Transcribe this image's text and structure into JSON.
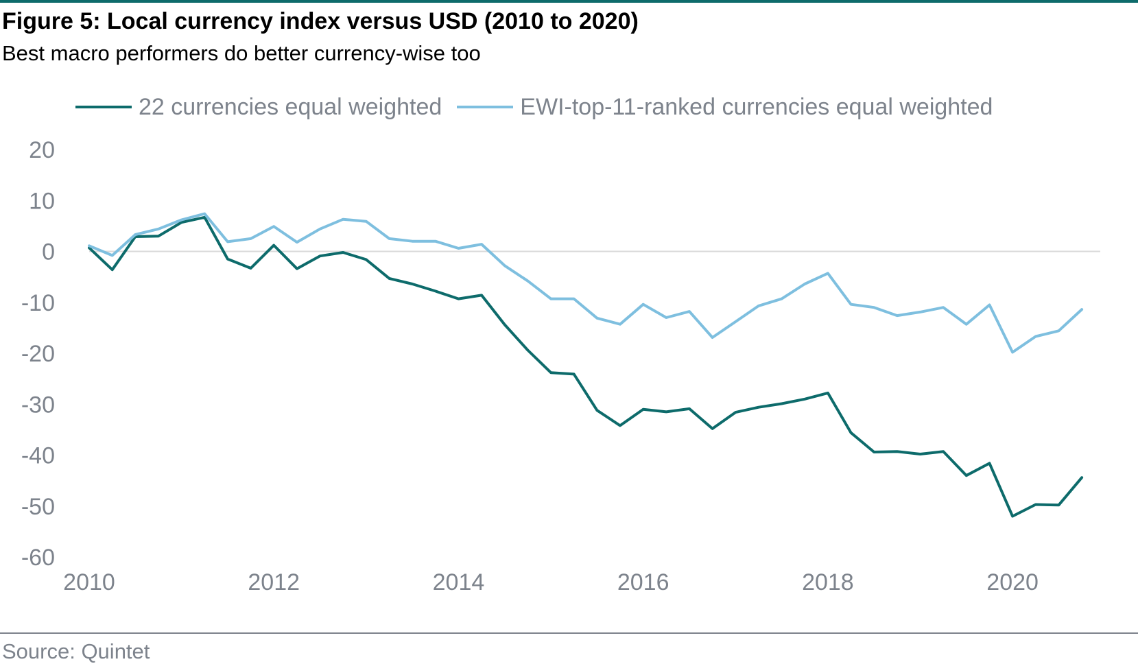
{
  "figure": {
    "title": "Figure 5: Local currency index versus USD (2010 to 2020)",
    "subtitle": "Best macro performers do better currency-wise too",
    "source": "Source: Quintet"
  },
  "colors": {
    "brand_rule": "#0d6b6b",
    "text_muted": "#7d838c",
    "zero_line": "#d9d9d9"
  },
  "chart_data": {
    "type": "line",
    "title": "Figure 5: Local currency index versus USD (2010 to 2020)",
    "subtitle": "Best macro performers do better currency-wise too",
    "xlabel": "",
    "ylabel": "",
    "xlim": [
      2010,
      2020.95
    ],
    "ylim": [
      -60,
      20
    ],
    "x_ticks": [
      2010,
      2012,
      2014,
      2016,
      2018,
      2020
    ],
    "x_tick_labels": [
      "2010",
      "2012",
      "2014",
      "2016",
      "2018",
      "2020"
    ],
    "y_ticks": [
      20,
      10,
      0,
      -10,
      -20,
      -30,
      -40,
      -50,
      -60
    ],
    "y_tick_labels": [
      "20",
      "10",
      "0",
      "-10",
      "-20",
      "-30",
      "-40",
      "-50",
      "-60"
    ],
    "grid": false,
    "zero_line": true,
    "legend_position": "top",
    "x": [
      2010.0,
      2010.25,
      2010.5,
      2010.75,
      2011.0,
      2011.25,
      2011.5,
      2011.75,
      2012.0,
      2012.25,
      2012.5,
      2012.75,
      2013.0,
      2013.25,
      2013.5,
      2013.75,
      2014.0,
      2014.25,
      2014.5,
      2014.75,
      2015.0,
      2015.25,
      2015.5,
      2015.75,
      2016.0,
      2016.25,
      2016.5,
      2016.75,
      2017.0,
      2017.25,
      2017.5,
      2017.75,
      2018.0,
      2018.25,
      2018.5,
      2018.75,
      2019.0,
      2019.25,
      2019.5,
      2019.75,
      2020.0,
      2020.25,
      2020.5,
      2020.75
    ],
    "series": [
      {
        "name": "22 currencies equal weighted",
        "color": "#0d6b6b",
        "values": [
          0.7,
          -3.6,
          2.9,
          3.0,
          5.7,
          6.7,
          -1.5,
          -3.3,
          1.2,
          -3.4,
          -0.9,
          -0.2,
          -1.6,
          -5.3,
          -6.4,
          -7.8,
          -9.3,
          -8.6,
          -14.4,
          -19.4,
          -23.8,
          -24.1,
          -31.2,
          -34.2,
          -31.0,
          -31.5,
          -30.9,
          -34.8,
          -31.6,
          -30.6,
          -29.9,
          -29.0,
          -27.8,
          -35.6,
          -39.4,
          -39.3,
          -39.8,
          -39.3,
          -44.0,
          -41.6,
          -52.0,
          -49.7,
          -49.8,
          -44.4
        ]
      },
      {
        "name": "EWI-top-11-ranked currencies equal weighted",
        "color": "#7ebfdf",
        "values": [
          1.1,
          -0.8,
          3.3,
          4.4,
          6.2,
          7.4,
          1.9,
          2.5,
          4.9,
          1.8,
          4.4,
          6.3,
          5.9,
          2.5,
          2.0,
          2.0,
          0.6,
          1.4,
          -2.8,
          -5.8,
          -9.3,
          -9.3,
          -13.1,
          -14.3,
          -10.4,
          -13.0,
          -11.8,
          -16.9,
          -13.8,
          -10.7,
          -9.3,
          -6.4,
          -4.3,
          -10.4,
          -11.0,
          -12.6,
          -11.9,
          -11.0,
          -14.3,
          -10.5,
          -19.8,
          -16.7,
          -15.6,
          -11.4
        ]
      }
    ]
  }
}
